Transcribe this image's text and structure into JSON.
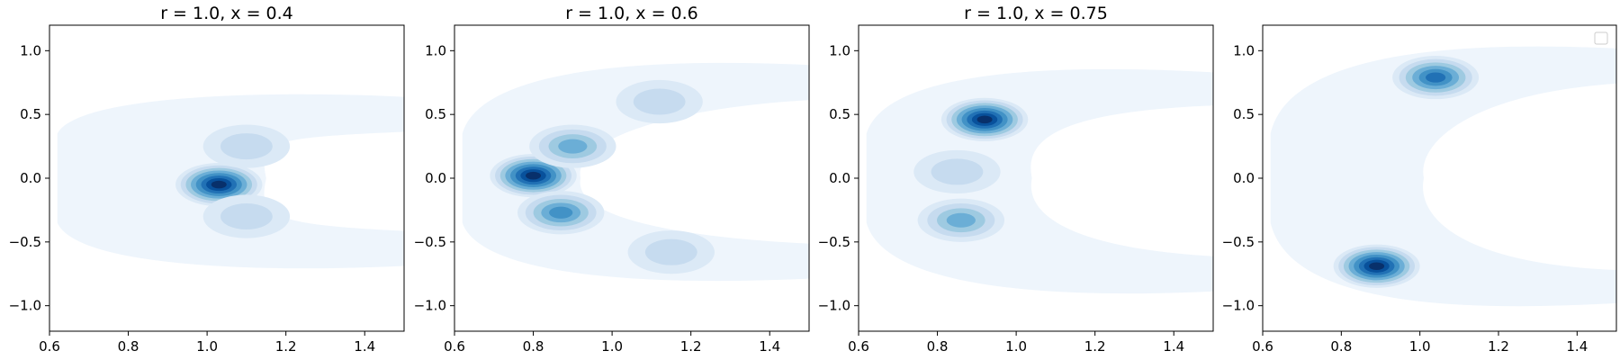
{
  "chart_data": [
    {
      "type": "contour",
      "title": "r = 1.0, x = 0.4",
      "xlim": [
        0.6,
        1.5
      ],
      "ylim": [
        -1.2,
        1.2
      ],
      "xticks": [
        "0.6",
        "0.8",
        "1.0",
        "1.2",
        "1.4"
      ],
      "yticks": [
        "1.0",
        "0.5",
        "0.0",
        "−0.5",
        "−1.0"
      ],
      "cmap": "Blues",
      "peaks": [
        {
          "x": 1.03,
          "y": -0.05,
          "level": 1.0
        },
        {
          "x": 1.1,
          "y": 0.25,
          "level": 0.3
        },
        {
          "x": 1.1,
          "y": -0.3,
          "level": 0.3
        }
      ],
      "arms": {
        "upper_end": [
          1.5,
          0.5
        ],
        "lower_end": [
          1.5,
          -0.55
        ]
      },
      "legend": false
    },
    {
      "type": "contour",
      "title": "r = 1.0, x = 0.6",
      "xlim": [
        0.6,
        1.5
      ],
      "ylim": [
        -1.2,
        1.2
      ],
      "xticks": [
        "0.6",
        "0.8",
        "1.0",
        "1.2",
        "1.4"
      ],
      "yticks": [
        "1.0",
        "0.5",
        "0.0",
        "−0.5",
        "−1.0"
      ],
      "cmap": "Blues",
      "peaks": [
        {
          "x": 0.8,
          "y": 0.02,
          "level": 1.0
        },
        {
          "x": 0.87,
          "y": -0.27,
          "level": 0.6
        },
        {
          "x": 0.9,
          "y": 0.25,
          "level": 0.5
        },
        {
          "x": 1.12,
          "y": 0.6,
          "level": 0.2
        },
        {
          "x": 1.15,
          "y": -0.58,
          "level": 0.2
        }
      ],
      "arms": {
        "upper_end": [
          1.5,
          0.75
        ],
        "lower_end": [
          1.5,
          -0.65
        ]
      },
      "legend": false
    },
    {
      "type": "contour",
      "title": "r = 1.0, x = 0.75",
      "xlim": [
        0.6,
        1.5
      ],
      "ylim": [
        -1.2,
        1.2
      ],
      "xticks": [
        "0.6",
        "0.8",
        "1.0",
        "1.2",
        "1.4"
      ],
      "yticks": [
        "1.0",
        "0.5",
        "0.0",
        "−0.5",
        "−1.0"
      ],
      "cmap": "Blues",
      "peaks": [
        {
          "x": 0.92,
          "y": 0.46,
          "level": 1.0
        },
        {
          "x": 0.86,
          "y": -0.33,
          "level": 0.55
        },
        {
          "x": 0.85,
          "y": 0.05,
          "level": 0.2
        }
      ],
      "arms": {
        "upper_end": [
          1.45,
          0.7
        ],
        "lower_end": [
          1.5,
          -0.75
        ]
      },
      "legend": false
    },
    {
      "type": "contour",
      "title": "",
      "xlim": [
        0.6,
        1.5
      ],
      "ylim": [
        -1.2,
        1.2
      ],
      "xticks": [
        "0.6",
        "0.8",
        "1.0",
        "1.2",
        "1.4"
      ],
      "yticks": [
        "1.0",
        "0.5",
        "0.0",
        "−0.5",
        "−1.0"
      ],
      "cmap": "Blues",
      "peaks": [
        {
          "x": 0.89,
          "y": -0.69,
          "level": 1.0
        },
        {
          "x": 1.04,
          "y": 0.79,
          "level": 0.75
        }
      ],
      "arms": {
        "upper_end": [
          1.5,
          0.88
        ],
        "lower_end": [
          1.45,
          -0.85
        ]
      },
      "legend": true
    }
  ]
}
